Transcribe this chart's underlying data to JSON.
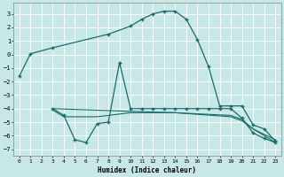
{
  "xlabel": "Humidex (Indice chaleur)",
  "bg_color": "#c8e8e8",
  "grid_color": "#ffffff",
  "line_color": "#1a6b6b",
  "xlim": [
    -0.5,
    23.5
  ],
  "ylim": [
    -7.5,
    3.8
  ],
  "yticks": [
    -7,
    -6,
    -5,
    -4,
    -3,
    -2,
    -1,
    0,
    1,
    2,
    3
  ],
  "xticks": [
    0,
    1,
    2,
    3,
    4,
    5,
    6,
    7,
    8,
    9,
    10,
    11,
    12,
    13,
    14,
    15,
    16,
    17,
    18,
    19,
    20,
    21,
    22,
    23
  ],
  "line1_x": [
    0,
    1,
    3,
    8,
    10,
    11,
    12,
    13,
    14,
    15,
    16,
    17,
    18,
    19,
    20,
    21,
    22,
    23
  ],
  "line1_y": [
    -1.6,
    0.05,
    0.5,
    1.5,
    2.1,
    2.6,
    3.0,
    3.2,
    3.2,
    2.6,
    1.1,
    -0.9,
    -3.8,
    -3.8,
    -3.8,
    -5.2,
    -5.5,
    -6.4
  ],
  "line2_x": [
    3,
    4,
    5,
    6,
    7,
    8,
    9,
    10,
    11,
    12,
    13,
    14,
    15,
    16,
    17,
    18,
    19,
    20,
    21,
    22,
    23
  ],
  "line2_y": [
    -4.0,
    -4.5,
    -6.3,
    -6.5,
    -5.1,
    -5.0,
    -0.6,
    -4.0,
    -4.0,
    -4.0,
    -4.0,
    -4.0,
    -4.0,
    -4.0,
    -4.0,
    -4.0,
    -4.0,
    -4.7,
    -5.8,
    -6.2,
    -6.5
  ],
  "line3_x": [
    3,
    4,
    5,
    7,
    10,
    14,
    19,
    20,
    21,
    22,
    23
  ],
  "line3_y": [
    -4.1,
    -4.6,
    -4.6,
    -4.6,
    -4.3,
    -4.3,
    -4.5,
    -4.8,
    -5.5,
    -5.9,
    -6.3
  ],
  "line4_x": [
    3,
    10,
    14,
    19,
    20,
    21,
    22,
    23
  ],
  "line4_y": [
    -4.0,
    -4.2,
    -4.3,
    -4.6,
    -4.9,
    -5.5,
    -6.0,
    -6.5
  ]
}
